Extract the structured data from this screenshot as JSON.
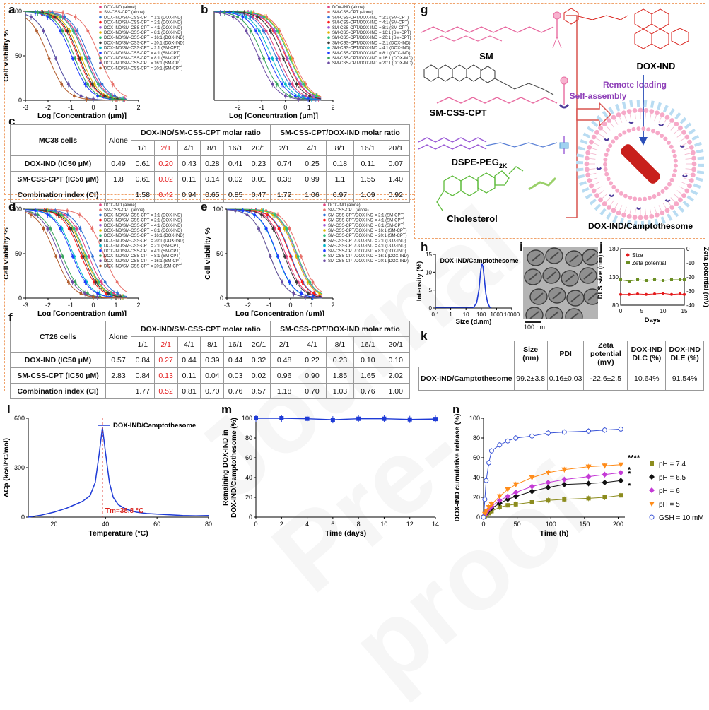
{
  "watermark": "Journal Pre-proof",
  "letters": {
    "a": "a",
    "b": "b",
    "c": "c",
    "d": "d",
    "e": "e",
    "f": "f",
    "g": "g",
    "h": "h",
    "i": "i",
    "j": "j",
    "k": "k",
    "l": "l",
    "m": "m",
    "n": "n"
  },
  "axes": {
    "cell_viability": "Cell viability %",
    "log_conc": "Log [Concentration (μm)]"
  },
  "tables": {
    "mc38": {
      "cell_line": "MC38 cells",
      "group1": "DOX-IND/SM-CSS-CPT molar ratio",
      "group2": "SM-CSS-CPT/DOX-IND molar ratio",
      "columns": [
        "Alone",
        "1/1",
        "2/1",
        "4/1",
        "8/1",
        "16/1",
        "20/1",
        "2/1",
        "4/1",
        "8/1",
        "16/1",
        "20/1"
      ],
      "rows": [
        {
          "label": "DOX-IND (IC50 μM)",
          "values": [
            "0.49",
            "0.61",
            "0.20",
            "0.43",
            "0.28",
            "0.41",
            "0.23",
            "0.74",
            "0.25",
            "0.18",
            "0.11",
            "0.07"
          ]
        },
        {
          "label": "SM-CSS-CPT (IC50 μM)",
          "values": [
            "1.8",
            "0.61",
            "0.02",
            "0.11",
            "0.14",
            "0.02",
            "0.01",
            "0.38",
            "0.99",
            "1.1",
            "1.55",
            "1.40"
          ]
        },
        {
          "label": "Combination index (CI)",
          "values": [
            "",
            "1.58",
            "0.42",
            "0.94",
            "0.65",
            "0.85",
            "0.47",
            "1.72",
            "1.06",
            "0.97",
            "1.09",
            "0.92"
          ]
        }
      ]
    },
    "ct26": {
      "cell_line": "CT26 cells",
      "group1": "DOX-IND/SM-CSS-CPT molar ratio",
      "group2": "SM-CSS-CPT/DOX-IND molar ratio",
      "columns": [
        "Alone",
        "1/1",
        "2/1",
        "4/1",
        "8/1",
        "16/1",
        "20/1",
        "2/1",
        "4/1",
        "8/1",
        "16/1",
        "20/1"
      ],
      "rows": [
        {
          "label": "DOX-IND (IC50 μM)",
          "values": [
            "0.57",
            "0.84",
            "0.27",
            "0.44",
            "0.39",
            "0.44",
            "0.32",
            "0.48",
            "0.22",
            "0.23",
            "0.10",
            "0.10"
          ]
        },
        {
          "label": "SM-CSS-CPT  (IC50 μM)",
          "values": [
            "2.83",
            "0.84",
            "0.13",
            "0.11",
            "0.04",
            "0.03",
            "0.02",
            "0.96",
            "0.90",
            "1.85",
            "1.65",
            "2.02"
          ]
        },
        {
          "label": "Combination index (CI)",
          "values": [
            "",
            "1.77",
            "0.52",
            "0.81",
            "0.70",
            "0.76",
            "0.57",
            "1.18",
            "0.70",
            "1.03",
            "0.76",
            "1.00"
          ]
        }
      ]
    },
    "k": {
      "columns": [
        "Size (nm)",
        "PDI",
        "Zeta potential (mV)",
        "DOX-IND DLC (%)",
        "DOX-IND DLE (%)"
      ],
      "row_label": "DOX-IND/Camptothesome",
      "values": [
        "99.2±3.8",
        "0.16±0.03",
        "-22.6±2.5",
        "10.64%",
        "91.54%"
      ]
    }
  },
  "legends": {
    "a": [
      "DOX-IND (alone)",
      "SM-CSS-CPT (alone)",
      "DOX-IND/SM-CSS-CPT = 1:1 (DOX-IND)",
      "DOX-IND/SM-CSS-CPT = 2:1 (DOX-IND)",
      "DOX-IND/SM-CSS-CPT = 4:1 (DOX-IND)",
      "DOX-IND/SM-CSS-CPT = 8:1 (DOX-IND)",
      "DOX-IND/SM-CSS-CPT = 16:1 (DOX-IND)",
      "DOX-IND/SM-CSS-CPT = 20:1 (DOX-IND)",
      "DOX-IND/SM-CSS-CPT = 2:1 (SM-CPT)",
      "DOX-IND/SM-CSS-CPT = 4:1 (SM-CPT)",
      "DOX-IND/SM-CSS-CPT = 8:1 (SM-CPT)",
      "DOX-IND/SM-CSS-CPT = 16:1 (SM-CPT)",
      "DOX-IND/SM-CSS-CPT = 20:1 (SM-CPT)"
    ],
    "b": [
      "DOX-IND (alone)",
      "SM-CSS-CPT (alone)",
      "SM-CSS-CPT/DOX-IND = 2:1 (SM-CPT)",
      "SM-CSS-CPT/DOX-IND = 4:1 (SM-CPT)",
      "SM-CSS-CPT/DOX-IND = 8:1 (SM-CPT)",
      "SM-CSS-CPT/DOX-IND = 16:1 (SM-CPT)",
      "SM-CSS-CPT/DOX-IND = 20:1 (SM-CPT)",
      "SM-CSS-CPT/DOX-IND = 2:1 (DOX-IND)",
      "SM-CSS-CPT/DOX-IND = 4:1 (DOX-IND)",
      "SM-CSS-CPT/DOX-IND = 8:1 (DOX-IND)",
      "SM-CSS-CPT/DOX-IND = 16:1 (DOX-IND)",
      "SM-CSS-CPT/DOX-IND = 20:1 (DOX-IND)"
    ],
    "d": [
      "DOX-IND (alone)",
      "SM-CSS-CPT (alone)",
      "DOX-IND/SM-CSS-CPT = 1:1 (DOX-IND)",
      "DOX-IND/SM-CSS-CPT = 2:1 (DOX-IND)",
      "DOX-IND/SM-CSS-CPT = 4:1 (DOX-IND)",
      "DOX-IND/SM-CSS-CPT = 8:1 (DOX-IND)",
      "DOX-IND/SM-CSS-CPT = 16:1 (DOX-IND)",
      "DOX-IND/SM-CSS-CPT = 20:1 (DOX-IND)",
      "DOX-IND/SM-CSS-CPT = 2:1 (SM-CPT)",
      "DOX-IND/SM-CSS-CPT = 4:1 (SM-CPT)",
      "DOX-IND/SM-CSS-CPT = 8:1 (SM-CPT)",
      "DOX-IND/SM-CSS-CPT = 16:1 (SM-CPT)",
      "DOX-IND/SM-CSS-CPT = 20:1 (SM-CPT)"
    ],
    "e": [
      "DOX-IND (alone)",
      "SM-CSS-CPT (alone)",
      "SM-CSS-CPT/DOX-IND = 2:1 (SM-CPT)",
      "SM-CSS-CPT/DOX-IND = 4:1 (SM-CPT)",
      "SM-CSS-CPT/DOX-IND = 8:1 (SM-CPT)",
      "SM-CSS-CPT/DOX-IND = 16:1 (SM-CPT)",
      "SM-CSS-CPT/DOX-IND = 20:1 (SM-CPT)",
      "SM-CSS-CPT/DOX-IND = 2:1 (DOX-IND)",
      "SM-CSS-CPT/DOX-IND = 4:1 (DOX-IND)",
      "SM-CSS-CPT/DOX-IND = 8:1 (DOX-IND)",
      "SM-CSS-CPT/DOX-IND = 16:1 (DOX-IND)",
      "SM-CSS-CPT/DOX-IND = 20:1 (DOX-IND)"
    ]
  },
  "series_colors": [
    "#e0417f",
    "#e8706a",
    "#2f6fd6",
    "#ff1a1a",
    "#9a5ad6",
    "#e1b400",
    "#2dbf7e",
    "#3a3a3a",
    "#00b7c9",
    "#1f3bff",
    "#35a35a",
    "#6b4ba3",
    "#b05a2a"
  ],
  "diagram_g": {
    "sm": "SM",
    "smcsscpt": "SM-CSS-CPT",
    "dspe": "DSPE-PEG",
    "dspe_sub": "2K",
    "cholesterol": "Cholesterol",
    "doxind": "DOX-IND",
    "remote": "Remote loading",
    "selfassembly": "Self-assembly",
    "product": "DOX-IND/Camptothesome"
  },
  "chart_data": [
    {
      "panel": "a",
      "type": "scatter",
      "title": "",
      "xlabel": "Log [Concentration (μm)]",
      "ylabel": "Cell viability %",
      "xlim": [
        -3,
        2
      ],
      "ylim": [
        0,
        100
      ],
      "xticks": [
        "-3",
        "-2",
        "-1",
        "0",
        "1",
        "2"
      ],
      "yticks": [
        "0",
        "50",
        "100"
      ],
      "series": [
        {
          "name": "DOX-IND (alone)",
          "ic50_log": -0.31
        },
        {
          "name": "SM-CSS-CPT (alone)",
          "ic50_log": 0.26
        },
        {
          "name": "DOX-IND/SM-CSS-CPT = 1:1 (DOX-IND)",
          "ic50_log": -0.21
        },
        {
          "name": "DOX-IND/SM-CSS-CPT = 2:1 (DOX-IND)",
          "ic50_log": -0.7
        },
        {
          "name": "DOX-IND/SM-CSS-CPT = 4:1 (DOX-IND)",
          "ic50_log": -0.37
        },
        {
          "name": "DOX-IND/SM-CSS-CPT = 8:1 (DOX-IND)",
          "ic50_log": -0.55
        },
        {
          "name": "DOX-IND/SM-CSS-CPT = 16:1 (DOX-IND)",
          "ic50_log": -0.39
        },
        {
          "name": "DOX-IND/SM-CSS-CPT = 20:1 (DOX-IND)",
          "ic50_log": -0.64
        },
        {
          "name": "DOX-IND/SM-CSS-CPT = 2:1 (SM-CPT)",
          "ic50_log": -1.7
        },
        {
          "name": "DOX-IND/SM-CSS-CPT = 4:1 (SM-CPT)",
          "ic50_log": -0.96
        },
        {
          "name": "DOX-IND/SM-CSS-CPT = 8:1 (SM-CPT)",
          "ic50_log": -0.85
        },
        {
          "name": "DOX-IND/SM-CSS-CPT = 16:1 (SM-CPT)",
          "ic50_log": -1.7
        },
        {
          "name": "DOX-IND/SM-CSS-CPT = 20:1 (SM-CPT)",
          "ic50_log": -2.0
        }
      ]
    },
    {
      "panel": "b",
      "type": "scatter",
      "title": "",
      "xlabel": "Log [Concentration (μm)]",
      "ylabel": "",
      "xlim": [
        -3,
        2
      ],
      "ylim": [
        0,
        100
      ],
      "xticks": [
        "-2",
        "-1",
        "0",
        "1",
        "2"
      ],
      "yticks": [],
      "series": [
        {
          "name": "DOX-IND (alone)",
          "ic50_log": -0.31
        },
        {
          "name": "SM-CSS-CPT (alone)",
          "ic50_log": 0.26
        },
        {
          "name": "SM-CSS-CPT/DOX-IND = 2:1 (SM-CPT)",
          "ic50_log": -0.42
        },
        {
          "name": "SM-CSS-CPT/DOX-IND = 4:1 (SM-CPT)",
          "ic50_log": 0.0
        },
        {
          "name": "SM-CSS-CPT/DOX-IND = 8:1 (SM-CPT)",
          "ic50_log": 0.04
        },
        {
          "name": "SM-CSS-CPT/DOX-IND = 16:1 (SM-CPT)",
          "ic50_log": 0.19
        },
        {
          "name": "SM-CSS-CPT/DOX-IND = 20:1 (SM-CPT)",
          "ic50_log": 0.15
        },
        {
          "name": "SM-CSS-CPT/DOX-IND = 2:1 (DOX-IND)",
          "ic50_log": -0.13
        },
        {
          "name": "SM-CSS-CPT/DOX-IND = 4:1 (DOX-IND)",
          "ic50_log": -0.6
        },
        {
          "name": "SM-CSS-CPT/DOX-IND = 8:1 (DOX-IND)",
          "ic50_log": -0.74
        },
        {
          "name": "SM-CSS-CPT/DOX-IND = 16:1 (DOX-IND)",
          "ic50_log": -0.96
        },
        {
          "name": "SM-CSS-CPT/DOX-IND = 20:1 (DOX-IND)",
          "ic50_log": -1.15
        }
      ]
    },
    {
      "panel": "d",
      "type": "scatter",
      "title": "",
      "xlabel": "Log [Concentration (μm)]",
      "ylabel": "Cell viability %",
      "xlim": [
        -3,
        2
      ],
      "ylim": [
        0,
        100
      ],
      "xticks": [
        "-3",
        "-2",
        "-1",
        "0",
        "1",
        "2"
      ],
      "yticks": [
        "0",
        "50",
        "100"
      ],
      "series": [
        {
          "name": "DOX-IND (alone)",
          "ic50_log": -0.24
        },
        {
          "name": "SM-CSS-CPT (alone)",
          "ic50_log": 0.45
        },
        {
          "name": "DOX-IND/SM-CSS-CPT = 1:1 (DOX-IND)",
          "ic50_log": -0.08
        },
        {
          "name": "DOX-IND/SM-CSS-CPT = 2:1 (DOX-IND)",
          "ic50_log": -0.57
        },
        {
          "name": "DOX-IND/SM-CSS-CPT = 4:1 (DOX-IND)",
          "ic50_log": -0.36
        },
        {
          "name": "DOX-IND/SM-CSS-CPT = 8:1 (DOX-IND)",
          "ic50_log": -0.41
        },
        {
          "name": "DOX-IND/SM-CSS-CPT = 16:1 (DOX-IND)",
          "ic50_log": -0.36
        },
        {
          "name": "DOX-IND/SM-CSS-CPT = 20:1 (DOX-IND)",
          "ic50_log": -0.49
        },
        {
          "name": "DOX-IND/SM-CSS-CPT = 2:1 (SM-CPT)",
          "ic50_log": -0.89
        },
        {
          "name": "DOX-IND/SM-CSS-CPT = 4:1 (SM-CPT)",
          "ic50_log": -0.96
        },
        {
          "name": "DOX-IND/SM-CSS-CPT = 8:1 (SM-CPT)",
          "ic50_log": -1.4
        },
        {
          "name": "DOX-IND/SM-CSS-CPT = 16:1 (SM-CPT)",
          "ic50_log": -1.52
        },
        {
          "name": "DOX-IND/SM-CSS-CPT = 20:1 (SM-CPT)",
          "ic50_log": -1.7
        }
      ]
    },
    {
      "panel": "e",
      "type": "scatter",
      "title": "",
      "xlabel": "Log [Concentration (μm)]",
      "ylabel": "Cell viability %",
      "xlim": [
        -3,
        2
      ],
      "ylim": [
        0,
        100
      ],
      "xticks": [
        "-3",
        "-2",
        "-1",
        "0",
        "1",
        "2"
      ],
      "yticks": [
        "0",
        "50",
        "100"
      ],
      "series": [
        {
          "name": "DOX-IND (alone)",
          "ic50_log": -0.24
        },
        {
          "name": "SM-CSS-CPT (alone)",
          "ic50_log": 0.45
        },
        {
          "name": "SM-CSS-CPT/DOX-IND = 2:1 (SM-CPT)",
          "ic50_log": -0.02
        },
        {
          "name": "SM-CSS-CPT/DOX-IND = 4:1 (SM-CPT)",
          "ic50_log": -0.05
        },
        {
          "name": "SM-CSS-CPT/DOX-IND = 8:1 (SM-CPT)",
          "ic50_log": 0.27
        },
        {
          "name": "SM-CSS-CPT/DOX-IND = 16:1 (SM-CPT)",
          "ic50_log": 0.22
        },
        {
          "name": "SM-CSS-CPT/DOX-IND = 20:1 (SM-CPT)",
          "ic50_log": 0.31
        },
        {
          "name": "SM-CSS-CPT/DOX-IND = 2:1 (DOX-IND)",
          "ic50_log": -0.32
        },
        {
          "name": "SM-CSS-CPT/DOX-IND = 4:1 (DOX-IND)",
          "ic50_log": -0.66
        },
        {
          "name": "SM-CSS-CPT/DOX-IND = 8:1 (DOX-IND)",
          "ic50_log": -0.64
        },
        {
          "name": "SM-CSS-CPT/DOX-IND = 16:1 (DOX-IND)",
          "ic50_log": -1.0
        },
        {
          "name": "SM-CSS-CPT/DOX-IND = 20:1 (DOX-IND)",
          "ic50_log": -1.0
        }
      ]
    },
    {
      "panel": "h",
      "type": "line",
      "title": "DOX-IND/Camptothesome",
      "xlabel": "Size (d.nm)",
      "ylabel": "Intensity (%)",
      "xscale": "log",
      "xlim": [
        0.1,
        10000
      ],
      "ylim": [
        0,
        15
      ],
      "xticks": [
        "0.1",
        "1",
        "10",
        "100",
        "1000",
        "10000"
      ],
      "yticks": [
        "0",
        "5",
        "10",
        "15"
      ],
      "x": [
        30,
        50,
        70,
        90,
        110,
        130,
        160,
        200,
        260,
        350,
        450
      ],
      "values": [
        0,
        1.5,
        5,
        10,
        12.5,
        11.5,
        8,
        4,
        1.5,
        0.3,
        0
      ]
    },
    {
      "panel": "j",
      "type": "line",
      "title": "",
      "xlabel": "Days",
      "ylabel": "DLS size (nm)",
      "y2label": "Zeta potential (mV)",
      "xlim": [
        0,
        15
      ],
      "ylim": [
        80,
        180
      ],
      "y2lim": [
        -40,
        0
      ],
      "xticks": [
        "0",
        "5",
        "10",
        "15"
      ],
      "yticks": [
        "80",
        "130",
        "180"
      ],
      "y2ticks": [
        "-40",
        "-30",
        "-20",
        "-10",
        "0"
      ],
      "legend": "top-left",
      "x": [
        0,
        2,
        4,
        6,
        8,
        10,
        12,
        14,
        15
      ],
      "series": [
        {
          "name": "Size",
          "axis": "left",
          "values": [
            99,
            99,
            100,
            99,
            100,
            101,
            99,
            100,
            99
          ]
        },
        {
          "name": "Zeta potential",
          "axis": "right",
          "values": [
            -22,
            -23,
            -22,
            -22.5,
            -22,
            -22.5,
            -22,
            -22,
            -22
          ]
        }
      ]
    },
    {
      "panel": "l",
      "type": "line",
      "title": "",
      "xlabel": "Temperature (°C)",
      "ylabel": "ΔCp (kcal/°C/mol)",
      "xlim": [
        10,
        80
      ],
      "ylim": [
        0,
        600
      ],
      "xticks": [
        "20",
        "40",
        "60",
        "80"
      ],
      "yticks": [
        "0",
        "300",
        "600"
      ],
      "legend": "top-right",
      "annotation": "Tm=38.8 °C",
      "series": [
        {
          "name": "DOX-IND/Camptothesome",
          "x": [
            10,
            15,
            20,
            25,
            28,
            31,
            34,
            36,
            37.5,
            38.8,
            40,
            41.5,
            43,
            45,
            48,
            52,
            56,
            60,
            65,
            70,
            75,
            80
          ],
          "values": [
            0,
            12,
            30,
            55,
            75,
            95,
            130,
            210,
            380,
            545,
            390,
            210,
            120,
            75,
            48,
            30,
            22,
            18,
            14,
            10,
            8,
            10
          ]
        }
      ]
    },
    {
      "panel": "m",
      "type": "line",
      "title": "",
      "xlabel": "Time (days)",
      "ylabel": "Remaining DOX-IND in DOX-IND/Camptothesome (%)",
      "xlim": [
        0,
        14
      ],
      "ylim": [
        0,
        100
      ],
      "xticks": [
        "0",
        "2",
        "4",
        "6",
        "8",
        "10",
        "12",
        "14"
      ],
      "yticks": [
        "0",
        "20",
        "40",
        "60",
        "80",
        "100"
      ],
      "x": [
        0,
        2,
        4,
        6,
        8,
        10,
        12,
        14
      ],
      "values": [
        100,
        100,
        99.5,
        98.5,
        99.5,
        99.5,
        98.8,
        99.2
      ]
    },
    {
      "panel": "n",
      "type": "line",
      "title": "",
      "xlabel": "Time (h)",
      "ylabel": "DOX-IND cumulative release (%)",
      "xlim": [
        0,
        210
      ],
      "ylim": [
        0,
        100
      ],
      "xticks": [
        "0",
        "50",
        "100",
        "150",
        "200"
      ],
      "yticks": [
        "0",
        "20",
        "40",
        "60",
        "80",
        "100"
      ],
      "legend": "right",
      "significance": [
        "****",
        "*",
        "*",
        "*"
      ],
      "x": [
        0,
        2,
        4,
        8,
        12,
        24,
        36,
        48,
        72,
        96,
        120,
        156,
        180,
        204
      ],
      "series": [
        {
          "name": "pH = 7.4",
          "values": [
            0,
            1,
            2,
            4,
            6,
            10,
            12,
            13,
            15,
            17,
            18,
            19,
            20,
            22
          ]
        },
        {
          "name": "pH = 6.5",
          "values": [
            0,
            2,
            4,
            7,
            9,
            14,
            18,
            21,
            26,
            30,
            33,
            34,
            35,
            37
          ]
        },
        {
          "name": "pH = 6",
          "values": [
            0,
            2,
            5,
            8,
            11,
            17,
            21,
            25,
            31,
            35,
            38,
            41,
            43,
            45
          ]
        },
        {
          "name": "pH = 5",
          "values": [
            0,
            3,
            6,
            10,
            13,
            21,
            28,
            33,
            40,
            45,
            48,
            51,
            52,
            53
          ]
        },
        {
          "name": "GSH = 10 mM",
          "values": [
            0,
            18,
            37,
            55,
            67,
            73,
            77,
            80,
            82,
            85,
            86,
            87,
            88,
            89
          ]
        }
      ]
    }
  ]
}
